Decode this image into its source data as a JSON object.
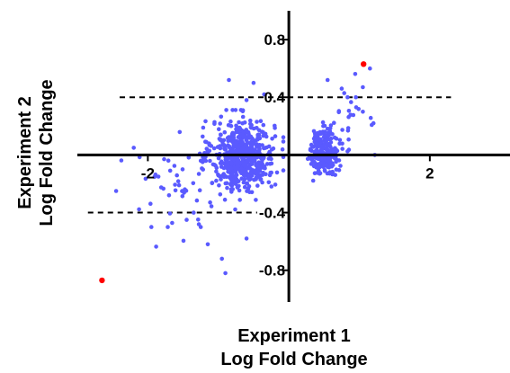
{
  "chart_data": {
    "type": "scatter",
    "title": "",
    "xlabel": [
      "Experiment 1",
      "Log Fold Change"
    ],
    "ylabel": [
      "Experiment 2",
      "Log Fold Change"
    ],
    "xlim": [
      -3.0,
      3.15
    ],
    "ylim": [
      -1.02,
      1.0
    ],
    "x_ticks": [
      {
        "value": -2,
        "label": "-2"
      },
      {
        "value": 2,
        "label": "2"
      }
    ],
    "y_ticks": [
      {
        "value": 0.8,
        "label": "0.8"
      },
      {
        "value": 0.4,
        "label": "0.4"
      },
      {
        "value": -0.4,
        "label": "-0.4"
      },
      {
        "value": -0.8,
        "label": "-0.8"
      }
    ],
    "threshold_lines": [
      {
        "y": 0.4,
        "x_from": -2.4,
        "x_to": 2.3,
        "style": "dashed"
      },
      {
        "y": -0.4,
        "x_from": -2.85,
        "x_to": -0.45,
        "style": "dashed"
      }
    ],
    "grid": false,
    "legend": "none",
    "colors": {
      "points": "#5a5aff",
      "highlight": "#ff0000",
      "axes": "#000000"
    },
    "highlight_points": [
      {
        "x": 1.06,
        "y": 0.63
      },
      {
        "x": -2.65,
        "y": -0.87
      }
    ],
    "clusters": [
      {
        "cx": -0.65,
        "cy": 0.0,
        "sx": 0.22,
        "sy": 0.12,
        "n": 600
      },
      {
        "cx": 0.5,
        "cy": 0.02,
        "sx": 0.1,
        "sy": 0.08,
        "n": 220
      },
      {
        "cx": -1.45,
        "cy": -0.22,
        "sx": 0.45,
        "sy": 0.16,
        "n": 55
      },
      {
        "cx": 0.85,
        "cy": 0.25,
        "sx": 0.25,
        "sy": 0.12,
        "n": 25
      }
    ],
    "outlier_points": [
      {
        "x": -2.2,
        "y": 0.05
      },
      {
        "x": -2.45,
        "y": -0.25
      },
      {
        "x": -1.95,
        "y": -0.5
      },
      {
        "x": -0.95,
        "y": -0.72
      },
      {
        "x": -0.9,
        "y": -0.82
      },
      {
        "x": -1.25,
        "y": -0.5
      },
      {
        "x": -1.45,
        "y": -0.45
      },
      {
        "x": -1.35,
        "y": -0.4
      },
      {
        "x": -0.85,
        "y": 0.52
      },
      {
        "x": -0.5,
        "y": 0.5
      },
      {
        "x": -0.6,
        "y": 0.38
      },
      {
        "x": -0.35,
        "y": 0.42
      },
      {
        "x": 0.55,
        "y": 0.52
      },
      {
        "x": 0.75,
        "y": 0.46
      },
      {
        "x": 1.15,
        "y": 0.6
      },
      {
        "x": 1.05,
        "y": 0.47
      },
      {
        "x": 0.95,
        "y": 0.4
      },
      {
        "x": 1.2,
        "y": 0.22
      },
      {
        "x": 1.05,
        "y": 0.3
      },
      {
        "x": 1.22,
        "y": 0.0
      },
      {
        "x": -1.7,
        "y": -0.28
      },
      {
        "x": -1.85,
        "y": -0.15
      },
      {
        "x": -1.15,
        "y": -0.62
      },
      {
        "x": -0.6,
        "y": -0.58
      }
    ]
  }
}
